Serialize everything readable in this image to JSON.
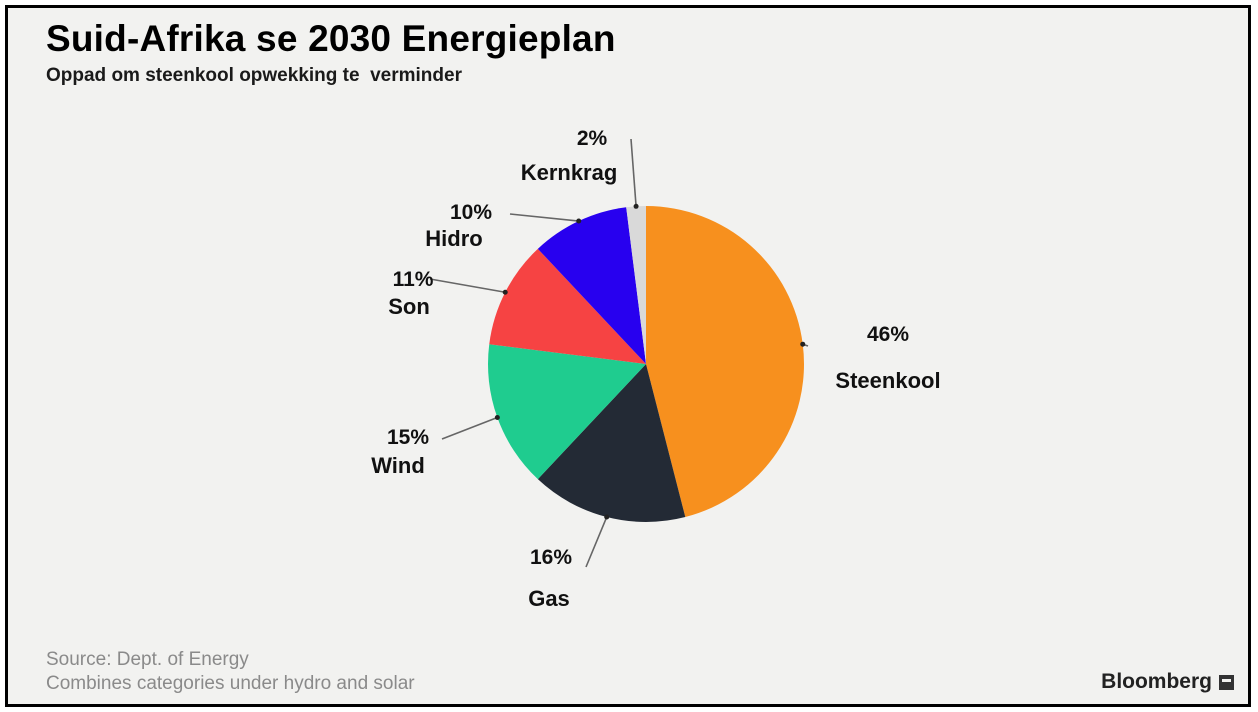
{
  "title": "Suid-Afrika se 2030 Energieplan",
  "subtitle": "Oppad om steenkool opwekking te  verminder",
  "source_line": "Source: Dept. of Energy",
  "note_line": "Combines categories under hydro and solar",
  "brand": "Bloomberg",
  "brand_icon": "bloomberg-logo-icon",
  "chart_data": {
    "type": "pie",
    "title": "Suid-Afrika se 2030 Energieplan",
    "subtitle": "Oppad om steenkool opwekking te  verminder",
    "start_angle": "12 o'clock, clockwise",
    "slices": [
      {
        "label": "Steenkool",
        "value": 46,
        "value_label": "46%",
        "color": "#f7901e"
      },
      {
        "label": "Gas",
        "value": 16,
        "value_label": "16%",
        "color": "#232a35"
      },
      {
        "label": "Wind",
        "value": 15,
        "value_label": "15%",
        "color": "#1fcc8f"
      },
      {
        "label": "Son",
        "value": 11,
        "value_label": "11%",
        "color": "#f64343"
      },
      {
        "label": "Hidro",
        "value": 10,
        "value_label": "10%",
        "color": "#2800ef"
      },
      {
        "label": "Kernkrag",
        "value": 2,
        "value_label": "2%",
        "color": "#d9d9d9"
      }
    ]
  }
}
